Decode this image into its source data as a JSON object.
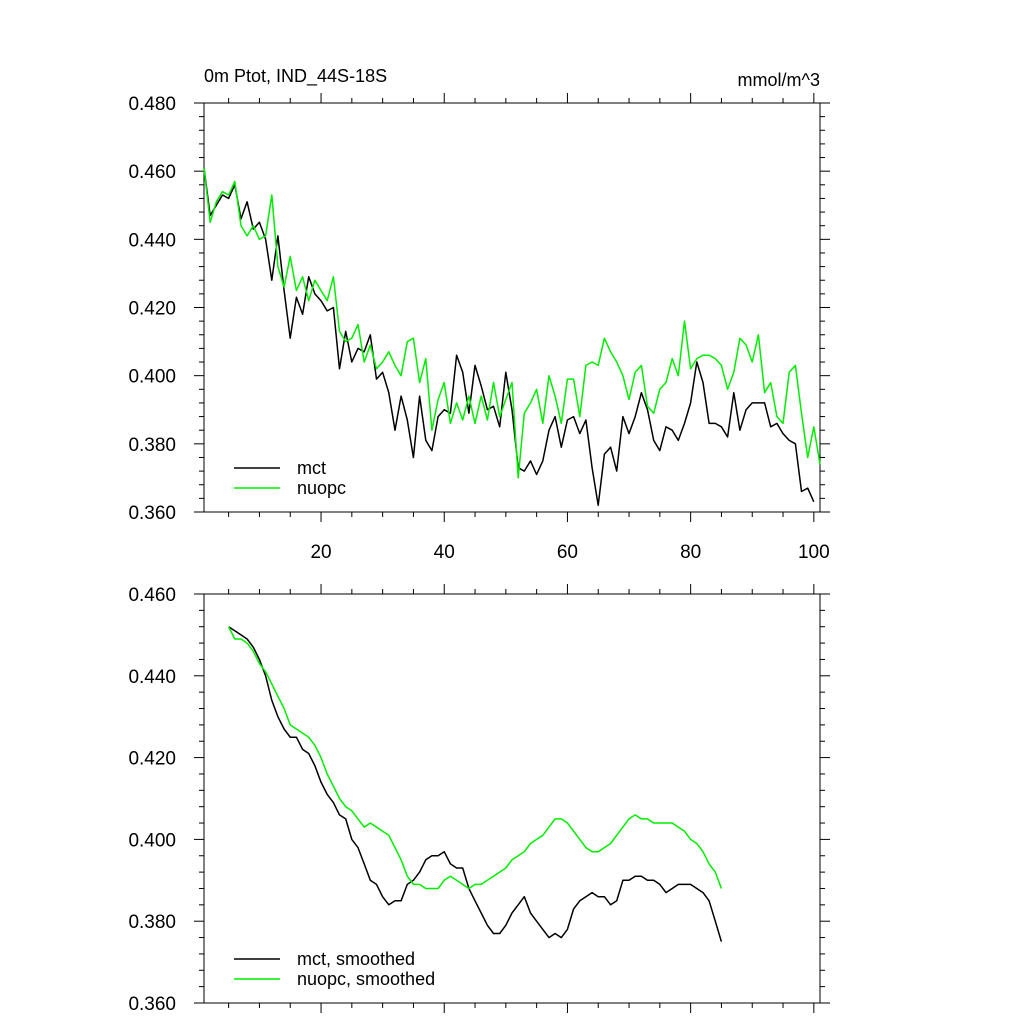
{
  "chart_data": [
    {
      "type": "line",
      "title": "0m Ptot, IND_44S-18S",
      "units": "mmol/m^3",
      "xlim": [
        1,
        101
      ],
      "ylim": [
        0.36,
        0.48
      ],
      "yticks": [
        0.36,
        0.38,
        0.4,
        0.42,
        0.44,
        0.46,
        0.48
      ],
      "ytick_labels": [
        "0.360",
        "0.380",
        "0.400",
        "0.420",
        "0.440",
        "0.460",
        "0.480"
      ],
      "xticks": [
        20,
        40,
        60,
        80,
        100
      ],
      "xtick_labels": [
        "20",
        "40",
        "60",
        "80",
        "100"
      ],
      "legend_position": "bottom-left",
      "series": [
        {
          "name": "mct",
          "color": "#000000",
          "x_start": 1,
          "values": [
            0.461,
            0.447,
            0.45,
            0.453,
            0.452,
            0.456,
            0.446,
            0.451,
            0.443,
            0.445,
            0.44,
            0.428,
            0.441,
            0.425,
            0.411,
            0.423,
            0.418,
            0.429,
            0.424,
            0.422,
            0.419,
            0.42,
            0.402,
            0.413,
            0.404,
            0.408,
            0.407,
            0.412,
            0.399,
            0.401,
            0.395,
            0.384,
            0.394,
            0.387,
            0.376,
            0.394,
            0.381,
            0.378,
            0.388,
            0.39,
            0.389,
            0.406,
            0.401,
            0.389,
            0.403,
            0.397,
            0.39,
            0.391,
            0.385,
            0.401,
            0.39,
            0.373,
            0.372,
            0.375,
            0.371,
            0.375,
            0.384,
            0.388,
            0.379,
            0.387,
            0.388,
            0.383,
            0.387,
            0.373,
            0.362,
            0.377,
            0.379,
            0.372,
            0.388,
            0.383,
            0.388,
            0.395,
            0.39,
            0.381,
            0.378,
            0.385,
            0.384,
            0.381,
            0.386,
            0.392,
            0.404,
            0.398,
            0.386,
            0.386,
            0.385,
            0.382,
            0.395,
            0.384,
            0.39,
            0.392,
            0.392,
            0.392,
            0.385,
            0.386,
            0.383,
            0.381,
            0.38,
            0.366,
            0.367,
            0.363
          ]
        },
        {
          "name": "nuopc",
          "color": "#00ee00",
          "x_start": 1,
          "values": [
            0.461,
            0.445,
            0.451,
            0.454,
            0.453,
            0.457,
            0.444,
            0.441,
            0.444,
            0.44,
            0.441,
            0.453,
            0.432,
            0.426,
            0.435,
            0.425,
            0.429,
            0.422,
            0.428,
            0.425,
            0.422,
            0.429,
            0.413,
            0.41,
            0.411,
            0.415,
            0.404,
            0.409,
            0.402,
            0.404,
            0.407,
            0.403,
            0.4,
            0.41,
            0.411,
            0.398,
            0.405,
            0.384,
            0.393,
            0.398,
            0.386,
            0.392,
            0.387,
            0.394,
            0.386,
            0.394,
            0.387,
            0.398,
            0.388,
            0.393,
            0.398,
            0.37,
            0.389,
            0.392,
            0.396,
            0.386,
            0.4,
            0.394,
            0.386,
            0.399,
            0.399,
            0.388,
            0.403,
            0.404,
            0.403,
            0.411,
            0.407,
            0.404,
            0.4,
            0.393,
            0.401,
            0.403,
            0.391,
            0.389,
            0.396,
            0.398,
            0.405,
            0.4,
            0.416,
            0.402,
            0.405,
            0.406,
            0.406,
            0.405,
            0.403,
            0.396,
            0.401,
            0.411,
            0.409,
            0.404,
            0.412,
            0.395,
            0.398,
            0.388,
            0.386,
            0.401,
            0.403,
            0.389,
            0.376,
            0.385,
            0.374
          ]
        }
      ]
    },
    {
      "type": "line",
      "title": "",
      "units": "",
      "xlim": [
        1,
        101
      ],
      "ylim": [
        0.36,
        0.46
      ],
      "yticks": [
        0.36,
        0.38,
        0.4,
        0.42,
        0.44,
        0.46
      ],
      "ytick_labels": [
        "0.360",
        "0.380",
        "0.400",
        "0.420",
        "0.440",
        "0.460"
      ],
      "xticks": [
        20,
        40,
        60,
        80,
        100
      ],
      "xtick_labels": [],
      "legend_position": "bottom-left",
      "series": [
        {
          "name": "mct, smoothed",
          "color": "#000000",
          "x_start": 5,
          "values": [
            0.452,
            0.451,
            0.45,
            0.449,
            0.447,
            0.444,
            0.44,
            0.434,
            0.43,
            0.427,
            0.425,
            0.425,
            0.422,
            0.421,
            0.418,
            0.414,
            0.411,
            0.409,
            0.406,
            0.405,
            0.4,
            0.398,
            0.394,
            0.39,
            0.389,
            0.386,
            0.384,
            0.385,
            0.385,
            0.389,
            0.39,
            0.392,
            0.395,
            0.396,
            0.396,
            0.397,
            0.394,
            0.393,
            0.393,
            0.388,
            0.385,
            0.382,
            0.379,
            0.377,
            0.377,
            0.379,
            0.382,
            0.384,
            0.386,
            0.382,
            0.38,
            0.378,
            0.376,
            0.377,
            0.376,
            0.378,
            0.383,
            0.385,
            0.386,
            0.387,
            0.386,
            0.386,
            0.384,
            0.385,
            0.39,
            0.39,
            0.391,
            0.391,
            0.39,
            0.39,
            0.389,
            0.387,
            0.388,
            0.389,
            0.389,
            0.389,
            0.388,
            0.387,
            0.385,
            0.38,
            0.375
          ]
        },
        {
          "name": "nuopc, smoothed",
          "color": "#00ee00",
          "x_start": 5,
          "values": [
            0.452,
            0.449,
            0.449,
            0.448,
            0.446,
            0.443,
            0.441,
            0.438,
            0.435,
            0.432,
            0.428,
            0.427,
            0.426,
            0.425,
            0.423,
            0.42,
            0.416,
            0.413,
            0.41,
            0.408,
            0.407,
            0.405,
            0.403,
            0.404,
            0.403,
            0.402,
            0.401,
            0.398,
            0.395,
            0.391,
            0.389,
            0.389,
            0.388,
            0.388,
            0.388,
            0.39,
            0.391,
            0.39,
            0.389,
            0.388,
            0.389,
            0.389,
            0.39,
            0.391,
            0.392,
            0.393,
            0.395,
            0.396,
            0.397,
            0.399,
            0.4,
            0.401,
            0.403,
            0.405,
            0.405,
            0.404,
            0.402,
            0.4,
            0.398,
            0.397,
            0.397,
            0.398,
            0.399,
            0.401,
            0.403,
            0.405,
            0.406,
            0.405,
            0.405,
            0.404,
            0.404,
            0.404,
            0.404,
            0.403,
            0.402,
            0.4,
            0.399,
            0.397,
            0.394,
            0.392,
            0.388
          ]
        }
      ]
    }
  ]
}
